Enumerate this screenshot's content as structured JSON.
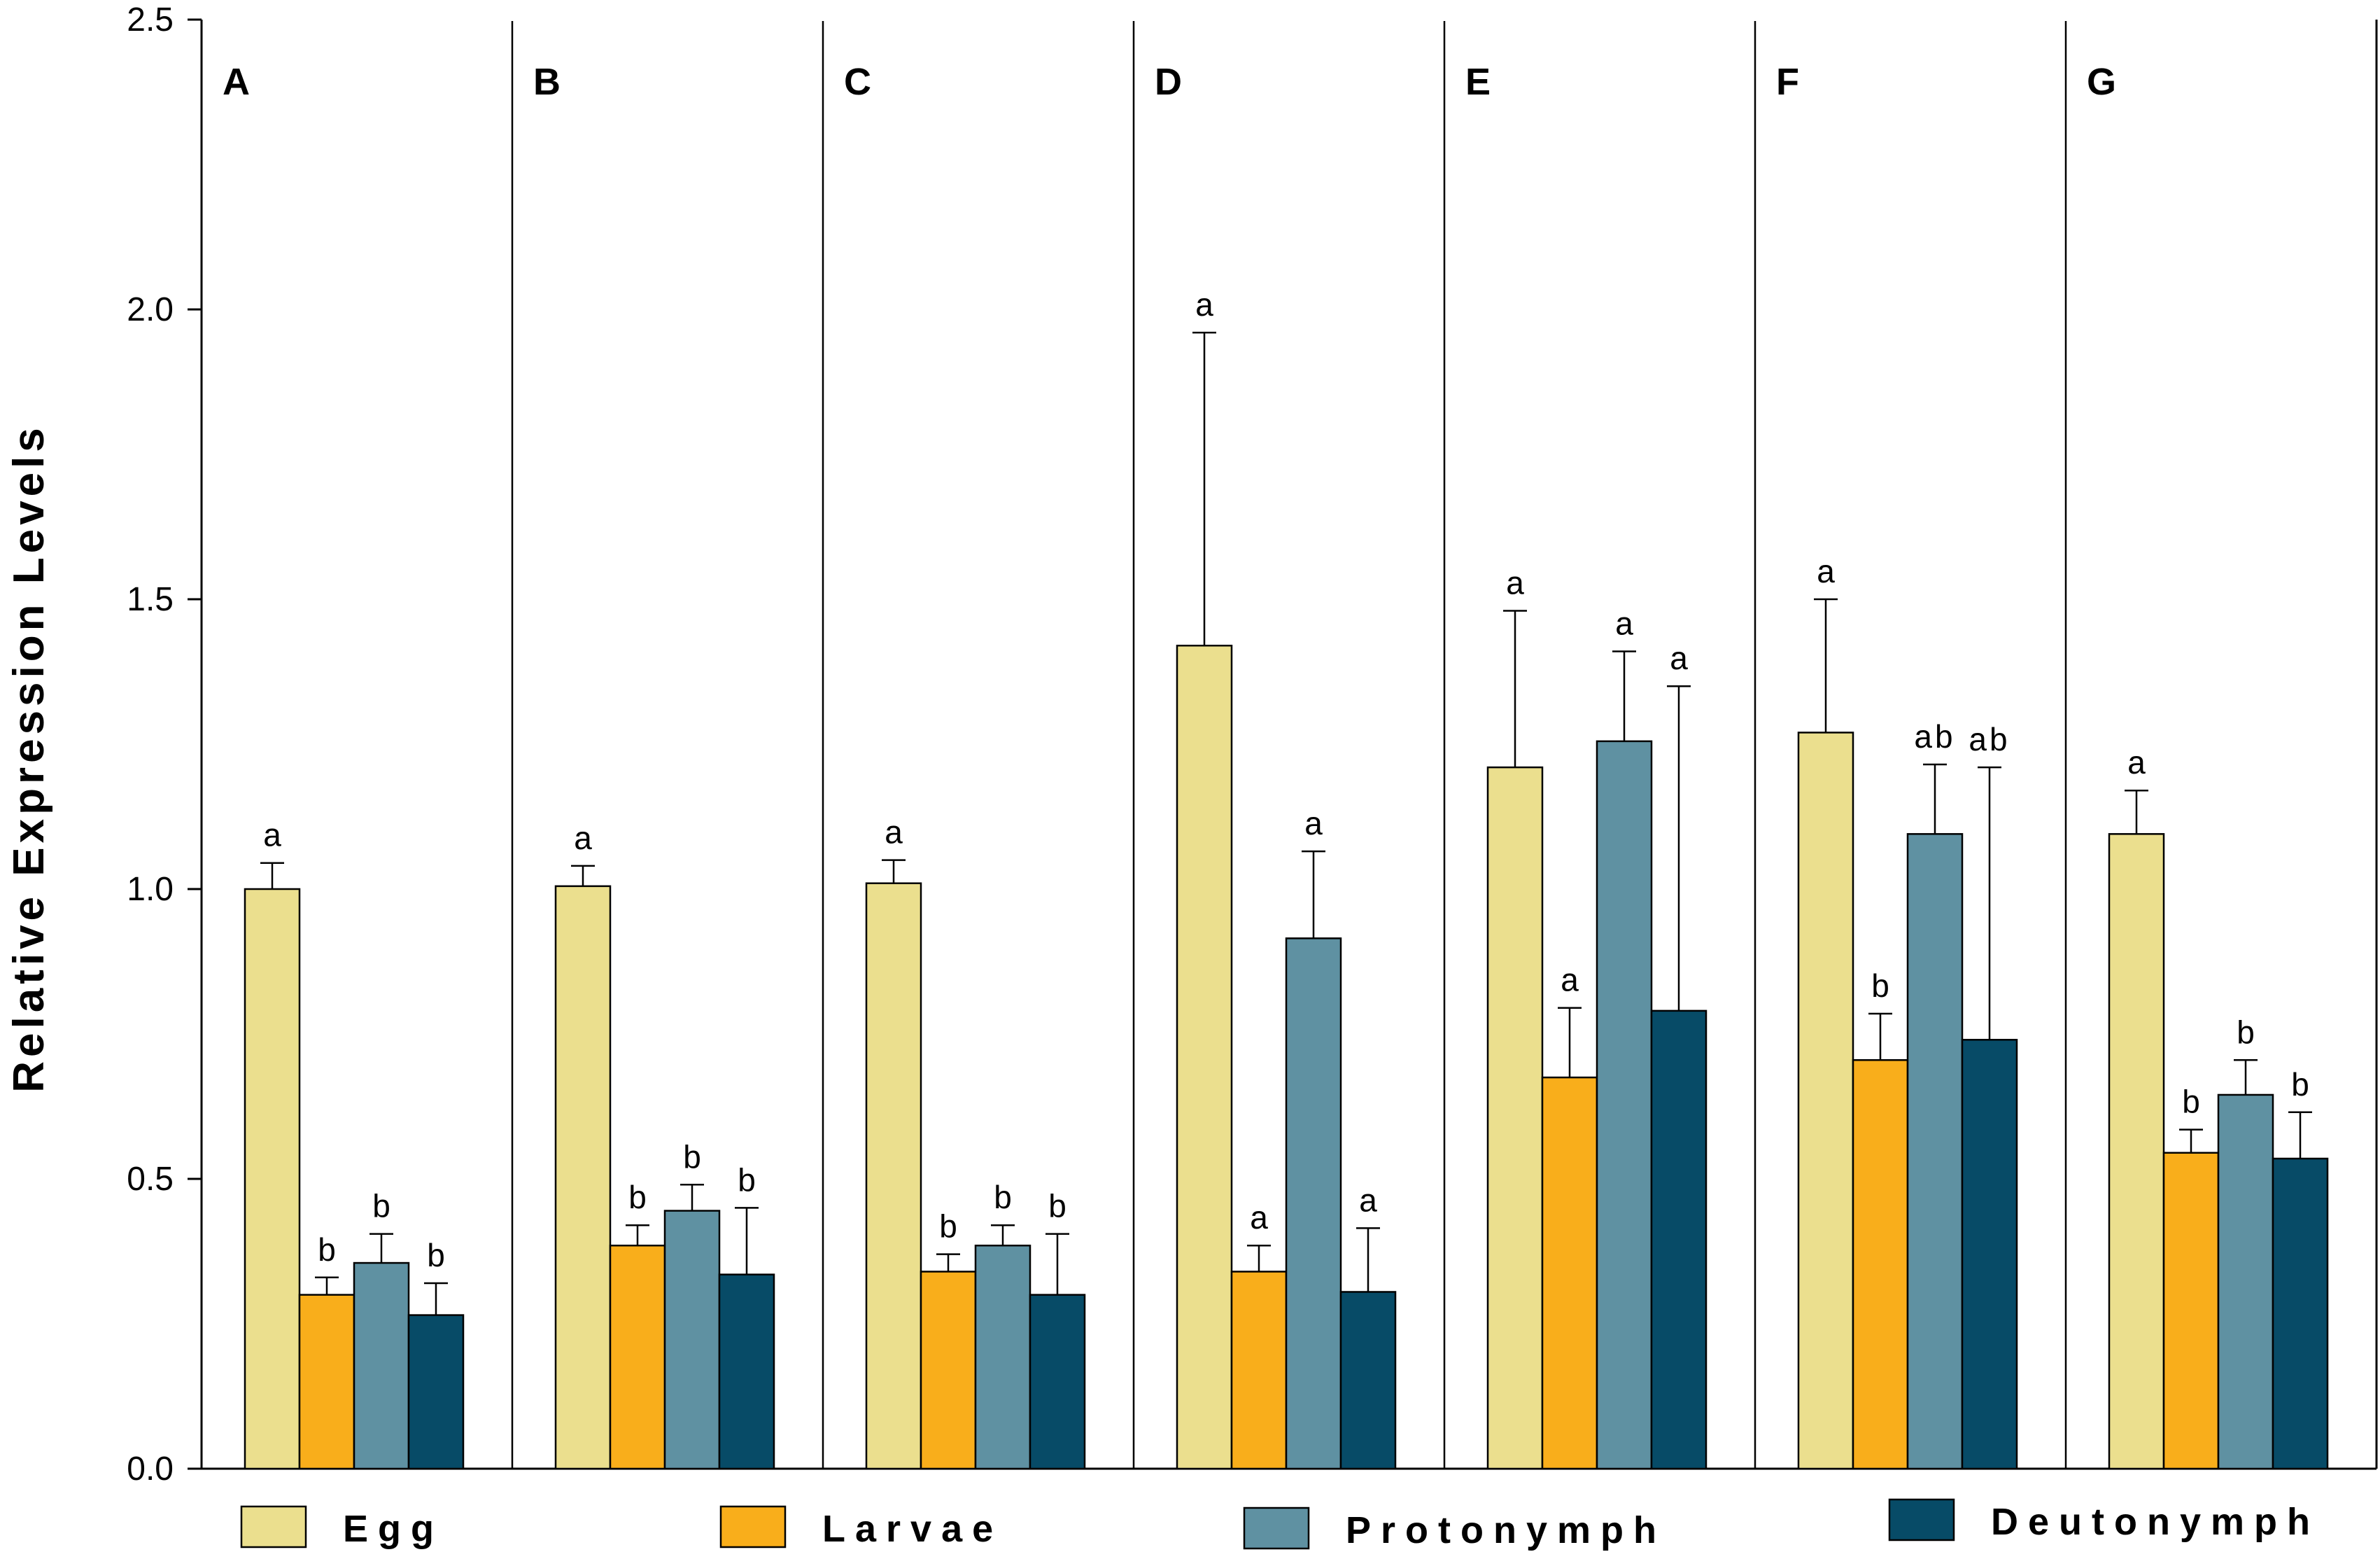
{
  "chart_data": {
    "type": "bar",
    "title": "",
    "xlabel": "",
    "ylabel": "Relative Expression Levels",
    "ylim": [
      0,
      2.5
    ],
    "yticks": [
      "0.0",
      "0.5",
      "1.0",
      "1.5",
      "2.0",
      "2.5"
    ],
    "grid": false,
    "legend_position": "bottom",
    "categories": [
      "A",
      "B",
      "C",
      "D",
      "E",
      "F",
      "G"
    ],
    "series": [
      {
        "name": "Egg",
        "color": "#EBDF8E",
        "values": [
          1.0,
          1.005,
          1.01,
          1.42,
          1.21,
          1.27,
          1.095
        ],
        "errors": [
          0.045,
          0.035,
          0.04,
          0.54,
          0.27,
          0.23,
          0.075
        ],
        "sig": [
          "a",
          "a",
          "a",
          "a",
          "a",
          "a",
          "a"
        ]
      },
      {
        "name": "Larvae",
        "color": "#F9AE1B",
        "values": [
          0.3,
          0.385,
          0.34,
          0.34,
          0.675,
          0.705,
          0.545
        ],
        "errors": [
          0.03,
          0.035,
          0.03,
          0.045,
          0.12,
          0.08,
          0.04
        ],
        "sig": [
          "b",
          "b",
          "b",
          "a",
          "a",
          "b",
          "b"
        ]
      },
      {
        "name": "Protonymph",
        "color": "#5F91A2",
        "values": [
          0.355,
          0.445,
          0.385,
          0.915,
          1.255,
          1.095,
          0.645
        ],
        "errors": [
          0.05,
          0.045,
          0.035,
          0.15,
          0.155,
          0.12,
          0.06
        ],
        "sig": [
          "b",
          "b",
          "b",
          "a",
          "a",
          "ab",
          "b"
        ]
      },
      {
        "name": "Deutonymph",
        "color": "#074B67",
        "values": [
          0.265,
          0.335,
          0.3,
          0.305,
          0.79,
          0.74,
          0.535
        ],
        "errors": [
          0.055,
          0.115,
          0.105,
          0.11,
          0.56,
          0.47,
          0.08
        ],
        "sig": [
          "b",
          "b",
          "b",
          "a",
          "a",
          "ab",
          "b"
        ]
      }
    ]
  }
}
